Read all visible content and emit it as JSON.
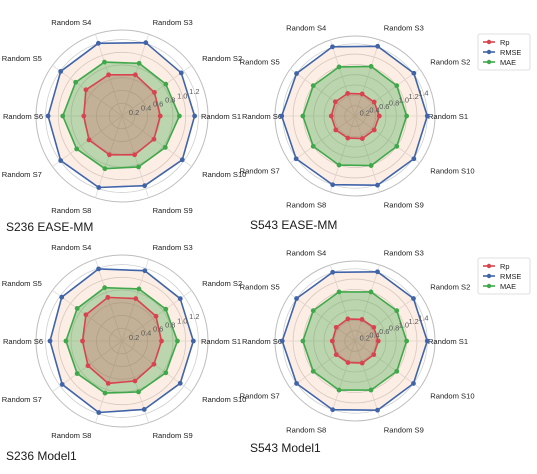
{
  "colors": {
    "rp": "#d9434f",
    "rmse": "#4064a8",
    "mae": "#3fa84a",
    "ring": "#cfcfcf",
    "spoke": "#dddddd",
    "tick_text": "#555555",
    "label_text": "#222222"
  },
  "chart_data": [
    {
      "type": "radar",
      "caption": "S236 EASE-MM",
      "categories": [
        "Random S1",
        "Random S2",
        "Random S3",
        "Random S4",
        "Random S5",
        "Random S6",
        "Random S7",
        "Random S8",
        "Random S9",
        "Random S10"
      ],
      "radial_ticks": [
        "0.2",
        "0.4",
        "0.6",
        "0.8",
        "1.0",
        "1.2"
      ],
      "rmax": 1.35,
      "legend": false,
      "series": [
        {
          "name": "Rp",
          "values": [
            0.6,
            0.63,
            0.68,
            0.68,
            0.7,
            0.6,
            0.64,
            0.64,
            0.64,
            0.62
          ]
        },
        {
          "name": "RMSE",
          "values": [
            1.14,
            1.15,
            1.21,
            1.2,
            1.19,
            1.16,
            1.19,
            1.18,
            1.15,
            1.17
          ]
        },
        {
          "name": "MAE",
          "values": [
            0.9,
            0.85,
            0.87,
            0.89,
            0.9,
            0.93,
            0.88,
            0.87,
            0.84,
            0.84
          ]
        }
      ]
    },
    {
      "type": "radar",
      "caption": "S543 EASE-MM",
      "categories": [
        "Random S1",
        "Random S2",
        "Random S3",
        "Random S4",
        "Random S5",
        "Random S6",
        "Random S7",
        "Random S8",
        "Random S9",
        "Random S10"
      ],
      "radial_ticks": [
        "0.2",
        "0.4",
        "0.6",
        "0.8",
        "1.0",
        "1.2",
        "1.4"
      ],
      "rmax": 1.55,
      "legend": true,
      "series": [
        {
          "name": "Rp",
          "values": [
            0.47,
            0.46,
            0.45,
            0.46,
            0.47,
            0.46,
            0.46,
            0.45,
            0.46,
            0.46
          ]
        },
        {
          "name": "RMSE",
          "values": [
            1.4,
            1.41,
            1.42,
            1.41,
            1.4,
            1.42,
            1.41,
            1.4,
            1.41,
            1.41
          ]
        },
        {
          "name": "MAE",
          "values": [
            1.0,
            1.0,
            1.01,
            1.0,
            1.0,
            1.01,
            1.0,
            1.0,
            1.01,
            1.0
          ]
        }
      ]
    },
    {
      "type": "radar",
      "caption": "S236 Model1",
      "categories": [
        "Random S1",
        "Random S2",
        "Random S3",
        "Random S4",
        "Random S5",
        "Random S6",
        "Random S7",
        "Random S8",
        "Random S9",
        "Random S10"
      ],
      "radial_ticks": [
        "0.2",
        "0.4",
        "0.6",
        "0.8",
        "1.0",
        "1.2"
      ],
      "rmax": 1.35,
      "legend": false,
      "series": [
        {
          "name": "Rp",
          "values": [
            0.62,
            0.66,
            0.7,
            0.72,
            0.7,
            0.62,
            0.66,
            0.7,
            0.66,
            0.62
          ]
        },
        {
          "name": "RMSE",
          "values": [
            1.12,
            1.13,
            1.16,
            1.19,
            1.17,
            1.13,
            1.16,
            1.18,
            1.13,
            1.13
          ]
        },
        {
          "name": "MAE",
          "values": [
            0.87,
            0.85,
            0.86,
            0.88,
            0.87,
            0.88,
            0.87,
            0.86,
            0.84,
            0.85
          ]
        }
      ]
    },
    {
      "type": "radar",
      "caption": "S543 Model1",
      "categories": [
        "Random S1",
        "Random S2",
        "Random S3",
        "Random S4",
        "Random S5",
        "Random S6",
        "Random S7",
        "Random S8",
        "Random S9",
        "Random S10"
      ],
      "radial_ticks": [
        "0.2",
        "0.4",
        "0.6",
        "0.8",
        "1.0",
        "1.2",
        "1.4"
      ],
      "rmax": 1.55,
      "legend": true,
      "series": [
        {
          "name": "Rp",
          "values": [
            0.45,
            0.45,
            0.44,
            0.45,
            0.45,
            0.44,
            0.45,
            0.44,
            0.45,
            0.45
          ]
        },
        {
          "name": "RMSE",
          "values": [
            1.4,
            1.4,
            1.41,
            1.4,
            1.4,
            1.41,
            1.4,
            1.4,
            1.41,
            1.4
          ]
        },
        {
          "name": "MAE",
          "values": [
            1.0,
            1.0,
            1.0,
            1.0,
            1.0,
            1.01,
            1.0,
            1.0,
            1.0,
            1.0
          ]
        }
      ]
    }
  ]
}
